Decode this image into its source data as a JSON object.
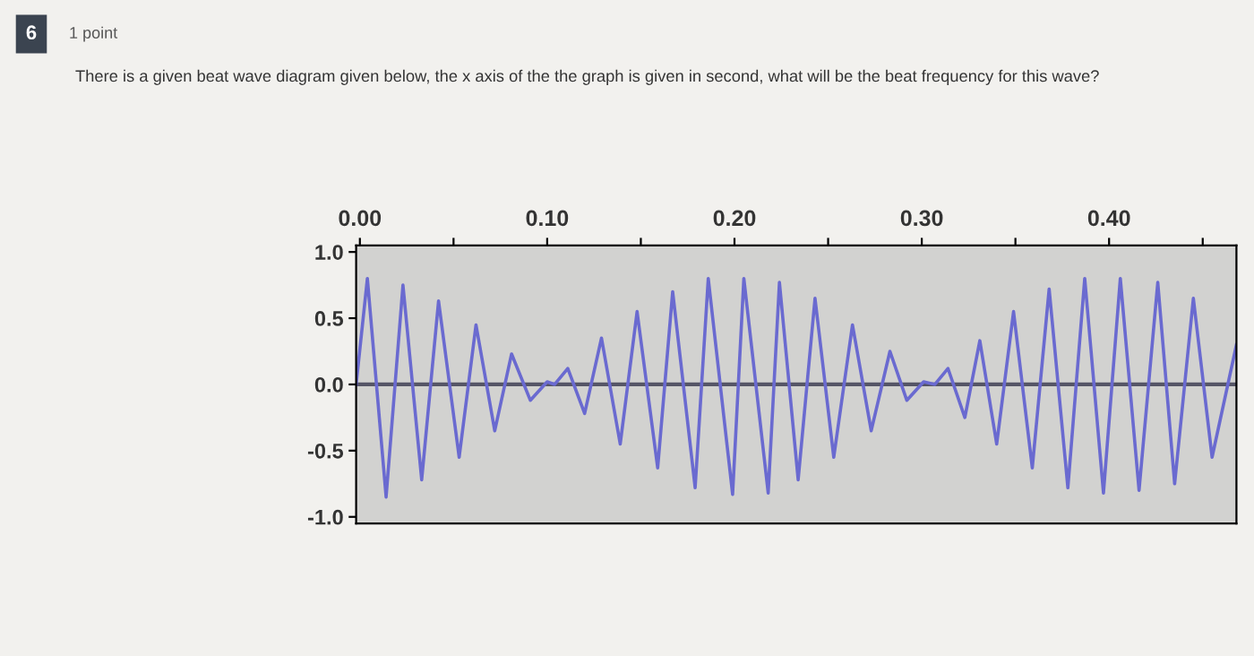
{
  "chart_data": {
    "type": "line",
    "title": "There is a given beat wave diagram given below, the x axis of the the graph is given in second, what will be the beat frequency for this wave?",
    "annotations": [
      "6",
      "1 point"
    ],
    "series": [
      {
        "color": "#6a6ad0",
        "x": [
          -0.002,
          0.004,
          0.014,
          0.023,
          0.033,
          0.042,
          0.053,
          0.062,
          0.072,
          0.081,
          0.091,
          0.1,
          0.104,
          0.111,
          0.12,
          0.129,
          0.139,
          0.148,
          0.159,
          0.167,
          0.179,
          0.186,
          0.199,
          0.205,
          0.218,
          0.224,
          0.234,
          0.243,
          0.253,
          0.263,
          0.273,
          0.283,
          0.292,
          0.301,
          0.307,
          0.314,
          0.323,
          0.331,
          0.34,
          0.349,
          0.359,
          0.368,
          0.378,
          0.387,
          0.397,
          0.406,
          0.416,
          0.426,
          0.435,
          0.445,
          0.455,
          0.468
        ],
        "values": [
          0.0,
          0.8,
          -0.85,
          0.75,
          -0.72,
          0.63,
          -0.55,
          0.45,
          -0.35,
          0.23,
          -0.12,
          0.02,
          0.0,
          0.12,
          -0.22,
          0.35,
          -0.45,
          0.55,
          -0.63,
          0.7,
          -0.78,
          0.8,
          -0.83,
          0.8,
          -0.82,
          0.77,
          -0.72,
          0.65,
          -0.55,
          0.45,
          -0.35,
          0.25,
          -0.12,
          0.02,
          0.0,
          0.12,
          -0.25,
          0.33,
          -0.45,
          0.55,
          -0.63,
          0.72,
          -0.78,
          0.8,
          -0.82,
          0.8,
          -0.8,
          0.77,
          -0.75,
          0.65,
          -0.55,
          0.3
        ]
      }
    ],
    "xlim": [
      -0.002,
      0.468
    ],
    "xticks": [
      {
        "value": 0,
        "label": "0.00"
      },
      {
        "value": 0.05,
        "label": null
      },
      {
        "value": 0.1,
        "label": "0.10"
      },
      {
        "value": 0.15,
        "label": null
      },
      {
        "value": 0.2,
        "label": "0.20"
      },
      {
        "value": 0.25,
        "label": null
      },
      {
        "value": 0.3,
        "label": "0.30"
      },
      {
        "value": 0.35,
        "label": null
      },
      {
        "value": 0.4,
        "label": "0.40"
      },
      {
        "value": 0.45,
        "label": null
      }
    ],
    "ylim": [
      -1.05,
      1.05
    ],
    "yticks": [
      {
        "value": 1,
        "label": "1.0"
      },
      {
        "value": 0.5,
        "label": "0.5"
      },
      {
        "value": 0,
        "label": "0.0"
      },
      {
        "value": -0.5,
        "label": "-0.5"
      },
      {
        "value": -1,
        "label": "-1.0"
      }
    ],
    "ref_lines": [
      {
        "axis": "y",
        "value": 0,
        "color": "#555566"
      }
    ],
    "grid": false,
    "legend": false,
    "marker": "none",
    "line_style": "solid"
  }
}
